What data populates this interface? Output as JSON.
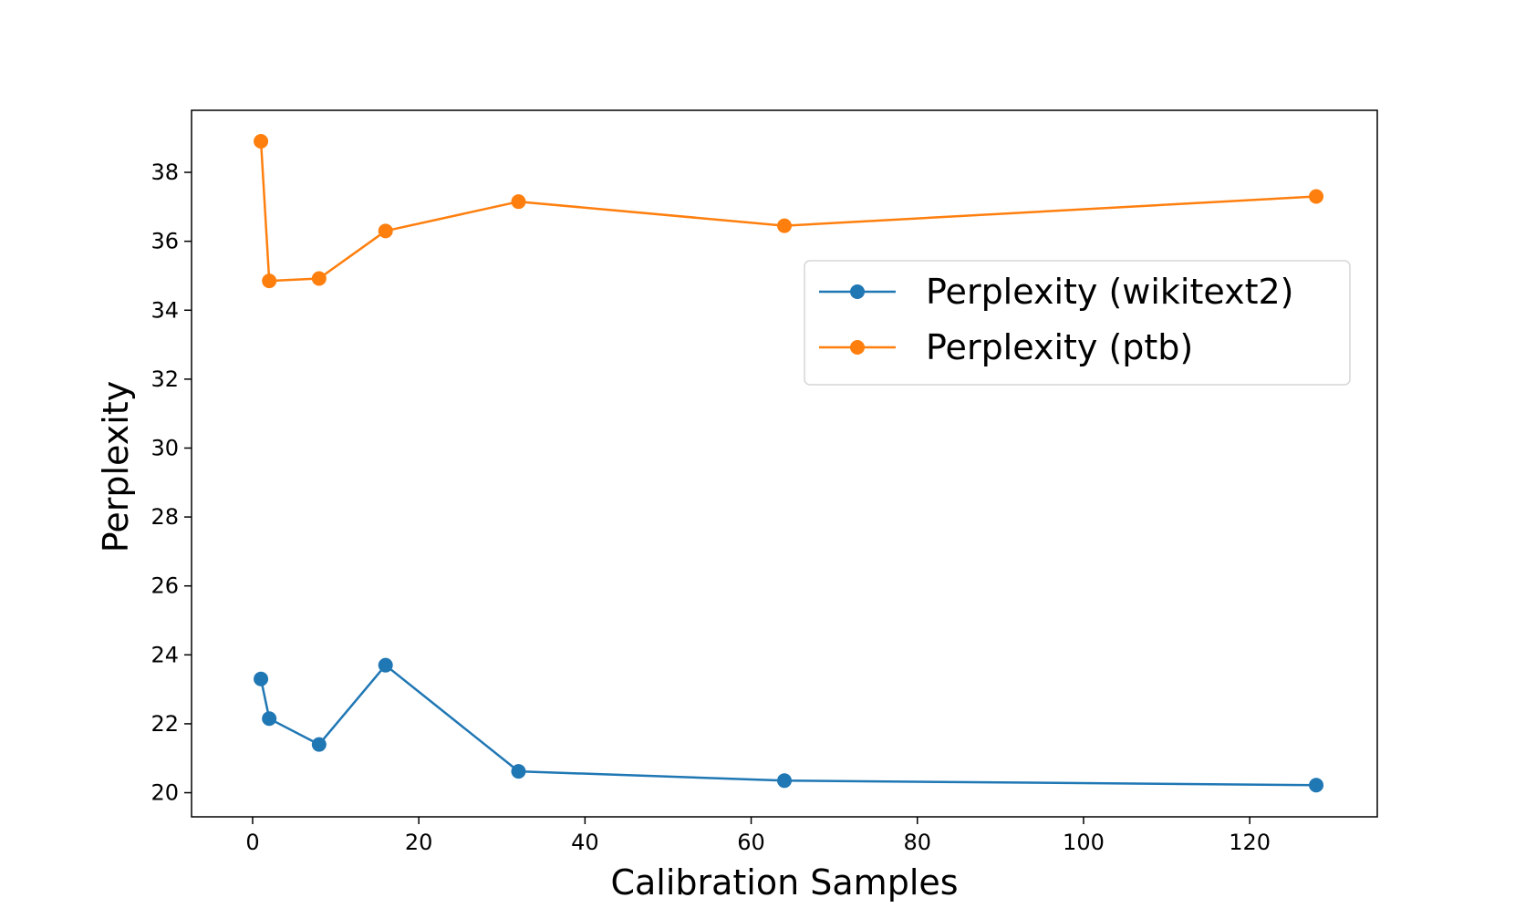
{
  "chart_data": {
    "type": "line",
    "title": "",
    "xlabel": "Calibration Samples",
    "ylabel": "Perplexity",
    "xlim": [
      -7.35,
      135.35
    ],
    "ylim": [
      19.3,
      39.8
    ],
    "xticks": [
      0,
      20,
      40,
      60,
      80,
      100,
      120
    ],
    "yticks": [
      20,
      22,
      24,
      26,
      28,
      30,
      32,
      34,
      36,
      38
    ],
    "grid": false,
    "legend_position": "center-right",
    "series": [
      {
        "name": "Perplexity (wikitext2)",
        "color": "#1f77b4",
        "marker": "circle",
        "x": [
          1,
          2,
          8,
          16,
          32,
          64,
          128
        ],
        "y": [
          23.3,
          22.15,
          21.4,
          23.7,
          20.62,
          20.35,
          20.22
        ]
      },
      {
        "name": "Perplexity (ptb)",
        "color": "#ff7f0e",
        "marker": "circle",
        "x": [
          1,
          2,
          8,
          16,
          32,
          64,
          128
        ],
        "y": [
          38.9,
          34.85,
          34.92,
          36.3,
          37.15,
          36.45,
          37.3
        ]
      }
    ]
  }
}
